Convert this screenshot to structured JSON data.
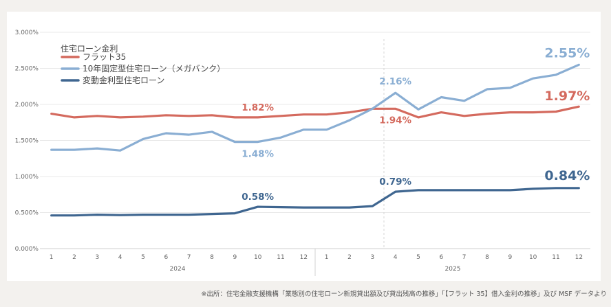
{
  "chart_data": {
    "type": "line",
    "legend_title": "住宅ローン金利",
    "categories": [
      "1",
      "2",
      "3",
      "4",
      "5",
      "6",
      "7",
      "8",
      "9",
      "10",
      "11",
      "12",
      "1",
      "2",
      "3",
      "4",
      "5",
      "6",
      "7",
      "8",
      "9",
      "10",
      "11",
      "12"
    ],
    "year_labels": [
      "2024",
      "2025"
    ],
    "y_ticks": [
      "0.000%",
      "0.500%",
      "1.000%",
      "1.500%",
      "2.000%",
      "2.500%",
      "3.000%"
    ],
    "ylim": [
      0,
      3
    ],
    "series": [
      {
        "name": "フラット35",
        "color": "#d46a5e",
        "values": [
          1.87,
          1.82,
          1.84,
          1.82,
          1.83,
          1.85,
          1.84,
          1.85,
          1.82,
          1.82,
          1.84,
          1.86,
          1.86,
          1.89,
          1.94,
          1.94,
          1.82,
          1.89,
          1.84,
          1.87,
          1.89,
          1.89,
          1.9,
          1.97
        ]
      },
      {
        "name": "10年固定型住宅ローン（メガバンク）",
        "color": "#8aaed3",
        "values": [
          1.37,
          1.37,
          1.39,
          1.36,
          1.52,
          1.6,
          1.58,
          1.62,
          1.48,
          1.48,
          1.54,
          1.65,
          1.65,
          1.78,
          1.94,
          2.16,
          1.93,
          2.1,
          2.05,
          2.21,
          2.23,
          2.36,
          2.41,
          2.55
        ]
      },
      {
        "name": "変動金利型住宅ローン",
        "color": "#3f6690",
        "values": [
          0.46,
          0.46,
          0.47,
          0.465,
          0.47,
          0.47,
          0.47,
          0.48,
          0.49,
          0.58,
          0.575,
          0.57,
          0.57,
          0.57,
          0.59,
          0.79,
          0.81,
          0.81,
          0.81,
          0.81,
          0.81,
          0.83,
          0.84,
          0.84
        ]
      }
    ],
    "annotations": [
      {
        "series": 0,
        "index": 9,
        "text": "1.82%",
        "size": "small"
      },
      {
        "series": 0,
        "index": 15,
        "text": "1.94%",
        "size": "small"
      },
      {
        "series": 0,
        "index": 23,
        "text": "1.97%",
        "size": "large"
      },
      {
        "series": 1,
        "index": 9,
        "text": "1.48%",
        "size": "small"
      },
      {
        "series": 1,
        "index": 15,
        "text": "2.16%",
        "size": "small"
      },
      {
        "series": 1,
        "index": 23,
        "text": "2.55%",
        "size": "large"
      },
      {
        "series": 2,
        "index": 9,
        "text": "0.58%",
        "size": "small"
      },
      {
        "series": 2,
        "index": 15,
        "text": "0.79%",
        "size": "small"
      },
      {
        "series": 2,
        "index": 23,
        "text": "0.84%",
        "size": "large"
      }
    ]
  },
  "source_note": "※出所：住宅金融支援機構「業態別の住宅ローン新規貸出額及び貸出残高の推移」「【フラット 35】借入金利の推移」及び MSF データより"
}
